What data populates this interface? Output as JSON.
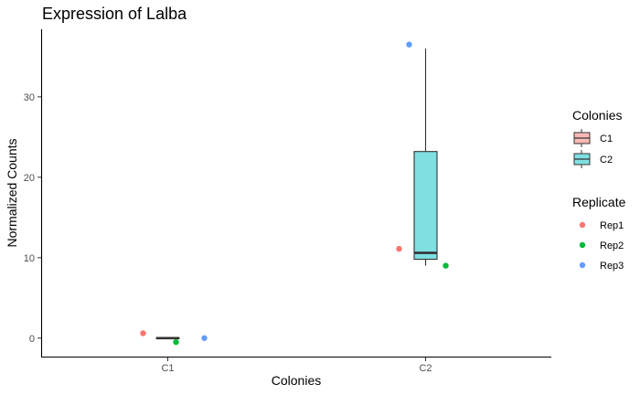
{
  "chart_data": {
    "type": "box",
    "title": "Expression of Lalba",
    "xlabel": "Colonies",
    "ylabel": "Normalized Counts",
    "categories": [
      "C1",
      "C2"
    ],
    "ylim": [
      -2.3,
      38.4
    ],
    "yticks": [
      0,
      10,
      20,
      30
    ],
    "grid": false,
    "boxes": [
      {
        "category": "C1",
        "min": 0.0,
        "q1": 0.0,
        "median": 0.0,
        "q3": 0.0,
        "max": 0.0,
        "color": "#F8766D"
      },
      {
        "category": "C2",
        "min": 9.0,
        "q1": 9.8,
        "median": 10.6,
        "q3": 23.2,
        "max": 36.0,
        "color": "#00BFC4"
      }
    ],
    "series": [
      {
        "name": "Rep1",
        "color": "#F8766D",
        "points": [
          {
            "x": "C1",
            "y": 0.6
          },
          {
            "x": "C2",
            "y": 11.1
          }
        ]
      },
      {
        "name": "Rep2",
        "color": "#00BA38",
        "points": [
          {
            "x": "C1",
            "y": -0.5
          },
          {
            "x": "C2",
            "y": 9.0
          }
        ]
      },
      {
        "name": "Rep3",
        "color": "#619CFF",
        "points": [
          {
            "x": "C1",
            "y": 0.0
          },
          {
            "x": "C2",
            "y": 36.5
          }
        ]
      }
    ],
    "legend": {
      "placement": "right",
      "fill_title": "Colonies",
      "fill_items": [
        {
          "label": "C1",
          "color": "#F8766D"
        },
        {
          "label": "C2",
          "color": "#00BFC4"
        }
      ],
      "color_title": "Replicate",
      "color_items": [
        {
          "label": "Rep1",
          "color": "#F8766D"
        },
        {
          "label": "Rep2",
          "color": "#00BA38"
        },
        {
          "label": "Rep3",
          "color": "#619CFF"
        }
      ]
    }
  }
}
